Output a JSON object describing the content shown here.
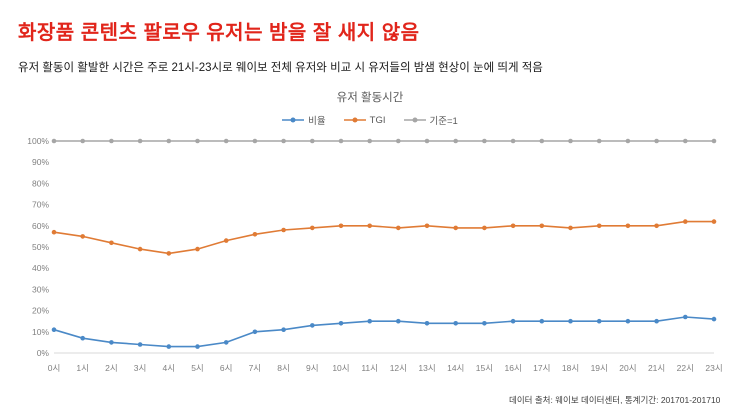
{
  "header": {
    "title": "화장품 콘텐츠 팔로우 유저는 밤을 잘 새지 않음",
    "title_color": "#e1251b",
    "subtitle": "유저 활동이 활발한 시간은 주로 21시-23시로 웨이보 전체 유저와 비교 시 유저들의 밤샘 현상이 눈에 띄게 적음"
  },
  "chart_data": {
    "type": "line",
    "title": "유저 활동시간",
    "categories": [
      "0시",
      "1시",
      "2시",
      "3시",
      "4시",
      "5시",
      "6시",
      "7시",
      "8시",
      "9시",
      "10시",
      "11시",
      "12시",
      "13시",
      "14시",
      "15시",
      "16시",
      "17시",
      "18시",
      "19시",
      "20시",
      "21시",
      "22시",
      "23시"
    ],
    "series": [
      {
        "name": "비율",
        "color": "#4a89c7",
        "values": [
          11,
          7,
          5,
          4,
          3,
          3,
          5,
          10,
          11,
          13,
          14,
          15,
          15,
          14,
          14,
          14,
          15,
          15,
          15,
          15,
          15,
          15,
          17,
          16
        ]
      },
      {
        "name": "TGI",
        "color": "#e07b35",
        "values": [
          57,
          55,
          52,
          49,
          47,
          49,
          53,
          56,
          58,
          59,
          60,
          60,
          59,
          60,
          59,
          59,
          60,
          60,
          59,
          60,
          60,
          60,
          62,
          62
        ]
      },
      {
        "name": "기준=1",
        "color": "#a6a6a6",
        "values": [
          100,
          100,
          100,
          100,
          100,
          100,
          100,
          100,
          100,
          100,
          100,
          100,
          100,
          100,
          100,
          100,
          100,
          100,
          100,
          100,
          100,
          100,
          100,
          100
        ]
      }
    ],
    "xlabel": "",
    "ylabel": "",
    "ylim": [
      0,
      100
    ],
    "ytick_step": 10,
    "ytick_suffix": "%",
    "grid": false,
    "legend_position": "top"
  },
  "footer": {
    "source": "데이터 출처: 웨이보 데이터센터, 통계기간: 201701-201710"
  }
}
